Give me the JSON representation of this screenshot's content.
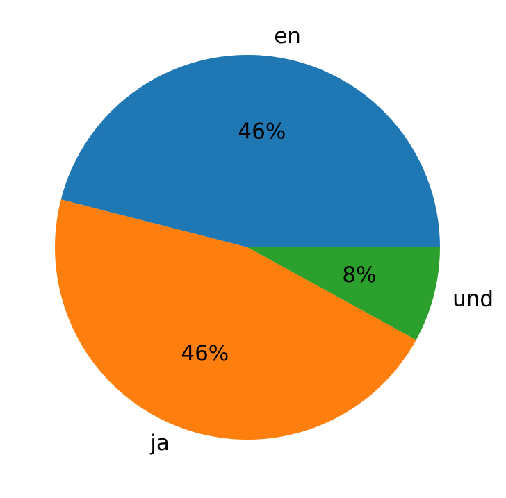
{
  "chart_data": {
    "type": "pie",
    "categories": [
      "en",
      "ja",
      "und"
    ],
    "values": [
      46,
      46,
      8
    ],
    "value_labels": [
      "46%",
      "46%",
      "8%"
    ],
    "colors": [
      "#1f77b4",
      "#ff7f0e",
      "#2ca02c"
    ]
  }
}
